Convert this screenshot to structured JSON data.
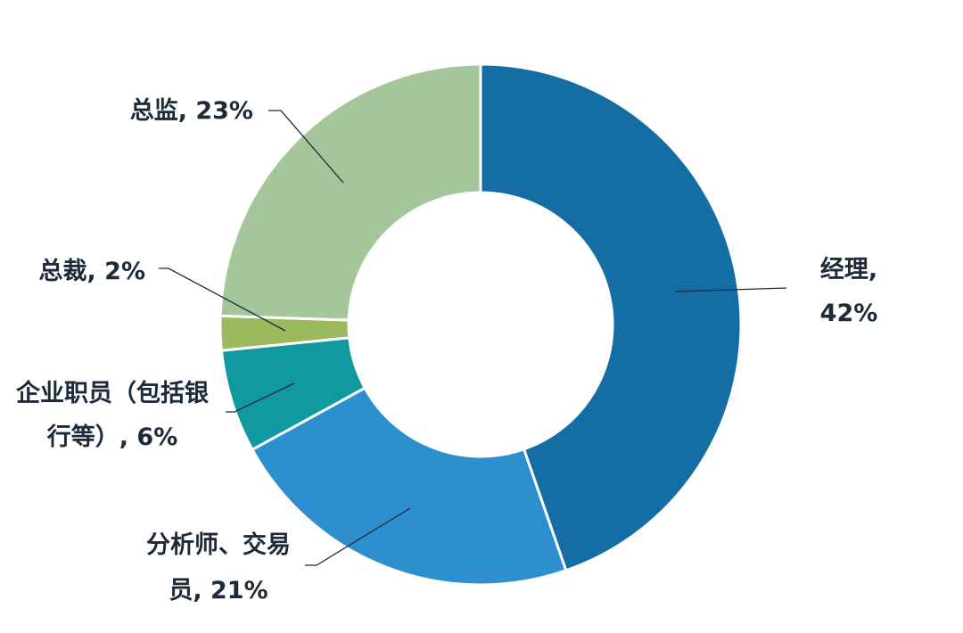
{
  "chart_data": {
    "type": "pie",
    "variant": "donut",
    "start_angle_deg": 0,
    "direction": "clockwise",
    "slices": [
      {
        "name": "经理",
        "value": 42,
        "color": "#156da6",
        "label_lines": [
          "经理,",
          "42%"
        ]
      },
      {
        "name": "分析师、交易员",
        "value": 21,
        "color": "#2e8fcf",
        "label_lines": [
          "分析师、交易",
          "员, 21%"
        ]
      },
      {
        "name": "企业职员（包括银行等）",
        "value": 6,
        "color": "#1199a2",
        "label_lines": [
          "企业职员（包括银",
          "行等）, 6%"
        ]
      },
      {
        "name": "总裁",
        "value": 2,
        "color": "#9aba5d",
        "label_lines": [
          "总裁, 2%"
        ]
      },
      {
        "name": "总监",
        "value": 23,
        "color": "#a5c69a",
        "label_lines": [
          "总监, 23%"
        ]
      }
    ]
  }
}
